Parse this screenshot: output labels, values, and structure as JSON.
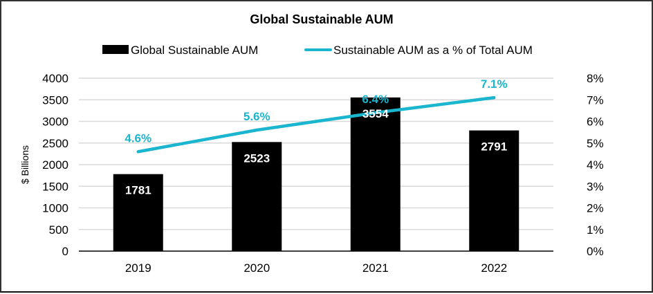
{
  "chart_data": {
    "type": "bar",
    "title": "Global Sustainable AUM",
    "categories": [
      "2019",
      "2020",
      "2021",
      "2022"
    ],
    "series": [
      {
        "name": "Global Sustainable AUM",
        "type": "bar",
        "axis": "left",
        "values": [
          1781,
          2523,
          3554,
          2791
        ],
        "labels": [
          "1781",
          "2523",
          "3554",
          "2791"
        ],
        "color": "#000000"
      },
      {
        "name": "Sustainable AUM as a % of Total AUM",
        "type": "line",
        "axis": "right",
        "values": [
          4.6,
          5.6,
          6.4,
          7.1
        ],
        "labels": [
          "4.6%",
          "5.6%",
          "6.4%",
          "7.1%"
        ],
        "color": "#1AB5CE"
      }
    ],
    "xlabel": "",
    "ylabel": "$ Billions",
    "ylim": [
      0,
      4000
    ],
    "y_ticks": [
      0,
      500,
      1000,
      1500,
      2000,
      2500,
      3000,
      3500,
      4000
    ],
    "y_tick_labels": [
      "0",
      "500",
      "1000",
      "1500",
      "2000",
      "2500",
      "3000",
      "3500",
      "4000"
    ],
    "y2lim": [
      0,
      8
    ],
    "y2_ticks": [
      0,
      1,
      2,
      3,
      4,
      5,
      6,
      7,
      8
    ],
    "y2_tick_labels": [
      "0%",
      "1%",
      "2%",
      "3%",
      "4%",
      "5%",
      "6%",
      "7%",
      "8%"
    ],
    "grid": true,
    "gridline_color": "#D9D9D9",
    "legend_position": "top-center"
  }
}
